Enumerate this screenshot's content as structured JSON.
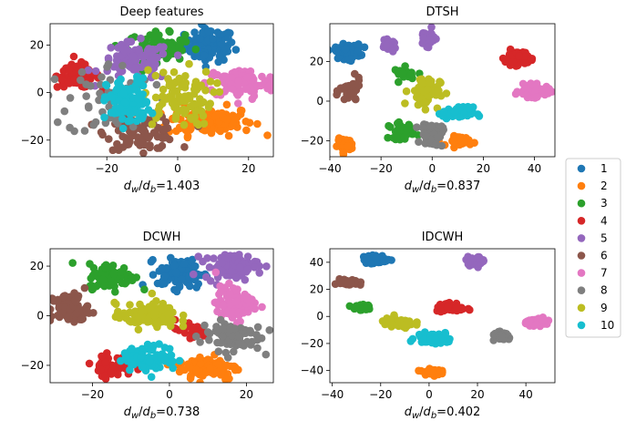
{
  "colors": [
    "#1f77b4",
    "#ff7f0e",
    "#2ca02c",
    "#d62728",
    "#9467bd",
    "#8c564b",
    "#e377c2",
    "#7f7f7f",
    "#bcbd22",
    "#17becf"
  ],
  "legend": {
    "labels": [
      "1",
      "2",
      "3",
      "4",
      "5",
      "6",
      "7",
      "8",
      "9",
      "10"
    ],
    "placement": "right"
  },
  "chart_data": [
    {
      "type": "scatter",
      "title": "Deep features",
      "xlabel_prefix": "d",
      "xlabel_sub1": "w",
      "xlabel_sub2": "b",
      "xlabel_value": "1.403",
      "xlim": [
        -36,
        27
      ],
      "ylim": [
        -27,
        29
      ],
      "xticks": [
        -20,
        0,
        20
      ],
      "yticks": [
        -20,
        0,
        20
      ],
      "xtick_labels": [
        "−20",
        "0",
        "20"
      ],
      "ytick_labels": [
        "−20",
        "0",
        "20"
      ],
      "clusters": [
        {
          "series": "1",
          "x": 9,
          "y": 20,
          "sx": 3.5,
          "sy": 3.5,
          "n": 90
        },
        {
          "series": "2",
          "x": 9,
          "y": -12,
          "sx": 6,
          "sy": 3,
          "n": 110
        },
        {
          "series": "3",
          "x": -6,
          "y": 19,
          "sx": 4,
          "sy": 3,
          "n": 90
        },
        {
          "series": "4",
          "x": -28,
          "y": 7,
          "sx": 3,
          "sy": 2.5,
          "n": 80
        },
        {
          "series": "5",
          "x": -12,
          "y": 13,
          "sx": 5,
          "sy": 4,
          "n": 90
        },
        {
          "series": "6",
          "x": -10,
          "y": -17,
          "sx": 5,
          "sy": 3.5,
          "n": 90
        },
        {
          "series": "7",
          "x": 18,
          "y": 4,
          "sx": 5,
          "sy": 3,
          "n": 110
        },
        {
          "series": "8",
          "x": -19,
          "y": -3,
          "sx": 6,
          "sy": 8,
          "n": 60
        },
        {
          "series": "9",
          "x": 0,
          "y": -2,
          "sx": 5,
          "sy": 6,
          "n": 90
        },
        {
          "series": "10",
          "x": -14,
          "y": -4,
          "sx": 3,
          "sy": 5,
          "n": 110
        }
      ]
    },
    {
      "type": "scatter",
      "title": "DTSH",
      "xlabel_prefix": "d",
      "xlabel_sub1": "w",
      "xlabel_sub2": "b",
      "xlabel_value": "0.837",
      "xlim": [
        -40,
        48
      ],
      "ylim": [
        -28,
        39
      ],
      "xticks": [
        -40,
        -20,
        0,
        20,
        40
      ],
      "yticks": [
        -20,
        0,
        20
      ],
      "xtick_labels": [
        "−40",
        "−20",
        "0",
        "20",
        "40"
      ],
      "ytick_labels": [
        "−20",
        "0",
        "20"
      ],
      "clusters": [
        {
          "series": "1",
          "x": -33,
          "y": 25,
          "sx": 2.5,
          "sy": 1.8,
          "n": 80
        },
        {
          "series": "2",
          "x": -34,
          "y": -22,
          "sx": 1.5,
          "sy": 1.5,
          "n": 40
        },
        {
          "series": "2",
          "x": 12,
          "y": -20,
          "sx": 2.5,
          "sy": 1.2,
          "n": 40
        },
        {
          "series": "3",
          "x": -12,
          "y": -15,
          "sx": 2.5,
          "sy": 2,
          "n": 40
        },
        {
          "series": "3",
          "x": -10,
          "y": 14,
          "sx": 2.5,
          "sy": 1.5,
          "n": 20
        },
        {
          "series": "4",
          "x": 33,
          "y": 22,
          "sx": 2.2,
          "sy": 1.8,
          "n": 70
        },
        {
          "series": "5",
          "x": -2,
          "y": 32,
          "sx": 1.5,
          "sy": 2,
          "n": 40
        },
        {
          "series": "5",
          "x": -17,
          "y": 28,
          "sx": 1.5,
          "sy": 1.2,
          "n": 20
        },
        {
          "series": "6",
          "x": -32,
          "y": 5,
          "sx": 2,
          "sy": 3,
          "n": 40
        },
        {
          "series": "7",
          "x": 40,
          "y": 5,
          "sx": 3,
          "sy": 1.5,
          "n": 80
        },
        {
          "series": "8",
          "x": 0,
          "y": -17,
          "sx": 2,
          "sy": 3,
          "n": 60
        },
        {
          "series": "9",
          "x": -3,
          "y": 5,
          "sx": 3,
          "sy": 4,
          "n": 60
        },
        {
          "series": "10",
          "x": 10,
          "y": -6,
          "sx": 3,
          "sy": 1.5,
          "n": 60
        }
      ]
    },
    {
      "type": "scatter",
      "title": "DCWH",
      "xlabel_prefix": "d",
      "xlabel_sub1": "w",
      "xlabel_sub2": "b",
      "xlabel_value": "0.738",
      "xlim": [
        -31,
        27
      ],
      "ylim": [
        -27,
        27
      ],
      "xticks": [
        -20,
        0,
        20
      ],
      "yticks": [
        -20,
        0,
        20
      ],
      "xtick_labels": [
        "−20",
        "0",
        "20"
      ],
      "ytick_labels": [
        "−20",
        "0",
        "20"
      ],
      "clusters": [
        {
          "series": "1",
          "x": 3,
          "y": 17,
          "sx": 3,
          "sy": 3,
          "n": 90
        },
        {
          "series": "2",
          "x": 10,
          "y": -21,
          "sx": 4,
          "sy": 2.5,
          "n": 90
        },
        {
          "series": "3",
          "x": -15,
          "y": 16,
          "sx": 3,
          "sy": 2.5,
          "n": 90
        },
        {
          "series": "4",
          "x": -15,
          "y": -20,
          "sx": 2.5,
          "sy": 2,
          "n": 60
        },
        {
          "series": "4",
          "x": 5,
          "y": -6,
          "sx": 2.5,
          "sy": 2,
          "n": 20
        },
        {
          "series": "5",
          "x": 16,
          "y": 20,
          "sx": 3.5,
          "sy": 2.5,
          "n": 90
        },
        {
          "series": "6",
          "x": -26,
          "y": 3,
          "sx": 2.5,
          "sy": 3,
          "n": 80
        },
        {
          "series": "7",
          "x": 17,
          "y": 5,
          "sx": 2.5,
          "sy": 3.5,
          "n": 90
        },
        {
          "series": "8",
          "x": 16,
          "y": -8,
          "sx": 4,
          "sy": 3,
          "n": 80
        },
        {
          "series": "9",
          "x": -6,
          "y": 0,
          "sx": 4,
          "sy": 2.5,
          "n": 100
        },
        {
          "series": "10",
          "x": -5,
          "y": -17,
          "sx": 3.5,
          "sy": 2.5,
          "n": 100
        }
      ]
    },
    {
      "type": "scatter",
      "title": "IDCWH",
      "xlabel_prefix": "d",
      "xlabel_sub1": "w",
      "xlabel_sub2": "b",
      "xlabel_value": "0.402",
      "xlim": [
        -41,
        52
      ],
      "ylim": [
        -49,
        50
      ],
      "xticks": [
        -40,
        -20,
        0,
        20,
        40
      ],
      "yticks": [
        -40,
        -20,
        0,
        20,
        40
      ],
      "xtick_labels": [
        "−40",
        "−20",
        "0",
        "20",
        "40"
      ],
      "ytick_labels": [
        "−40",
        "−20",
        "0",
        "20",
        "40"
      ],
      "clusters": [
        {
          "series": "1",
          "x": -22,
          "y": 42,
          "sx": 2.5,
          "sy": 1.5,
          "n": 80
        },
        {
          "series": "2",
          "x": 1,
          "y": -41,
          "sx": 1.8,
          "sy": 1,
          "n": 50
        },
        {
          "series": "3",
          "x": -28,
          "y": 7,
          "sx": 2,
          "sy": 1.2,
          "n": 40
        },
        {
          "series": "4",
          "x": 9,
          "y": 6,
          "sx": 3,
          "sy": 2,
          "n": 40
        },
        {
          "series": "5",
          "x": 19,
          "y": 41,
          "sx": 2,
          "sy": 1.5,
          "n": 40
        },
        {
          "series": "6",
          "x": -33,
          "y": 25,
          "sx": 2,
          "sy": 1.2,
          "n": 50
        },
        {
          "series": "7",
          "x": 45,
          "y": -4,
          "sx": 2.5,
          "sy": 1.2,
          "n": 60
        },
        {
          "series": "8",
          "x": 30,
          "y": -15,
          "sx": 2,
          "sy": 1.5,
          "n": 40
        },
        {
          "series": "9",
          "x": -13,
          "y": -5,
          "sx": 3.5,
          "sy": 1.8,
          "n": 70
        },
        {
          "series": "10",
          "x": 2,
          "y": -16,
          "sx": 3.5,
          "sy": 2,
          "n": 70
        }
      ]
    }
  ]
}
